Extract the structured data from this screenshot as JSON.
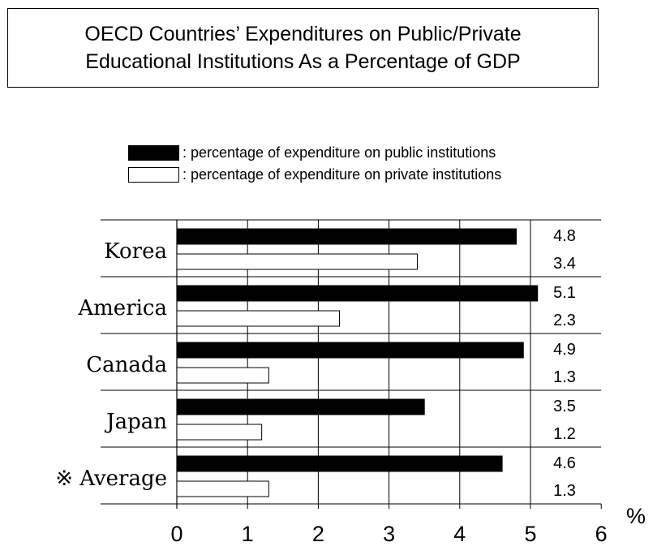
{
  "chart_data": {
    "type": "bar",
    "orientation": "horizontal",
    "title": "OECD Countries’ Expenditures on Public/Private Educational Institutions As a Percentage of GDP",
    "title_lines": [
      "OECD Countries’ Expenditures on Public/Private",
      "Educational Institutions As a Percentage of GDP"
    ],
    "categories": [
      "Korea",
      "America",
      "Canada",
      "Japan",
      "※ Average"
    ],
    "series": [
      {
        "name": ": percentage of expenditure on public institutions",
        "values": [
          4.8,
          5.1,
          4.9,
          3.5,
          4.6
        ],
        "color": "#000000"
      },
      {
        "name": ": percentage of expenditure on private institutions",
        "values": [
          3.4,
          2.3,
          1.3,
          1.2,
          1.3
        ],
        "color": "#ffffff"
      }
    ],
    "value_labels": [
      [
        "4.8",
        "3.4"
      ],
      [
        "5.1",
        "2.3"
      ],
      [
        "4.9",
        "1.3"
      ],
      [
        "3.5",
        "1.2"
      ],
      [
        "4.6",
        "1.3"
      ]
    ],
    "xlim": [
      0,
      6
    ],
    "xticks": [
      "0",
      "1",
      "2",
      "3",
      "4",
      "5",
      "6"
    ],
    "xunit": "%",
    "xlabel": "",
    "ylabel": "",
    "grid": "vertical",
    "legend_position": "top-right"
  }
}
